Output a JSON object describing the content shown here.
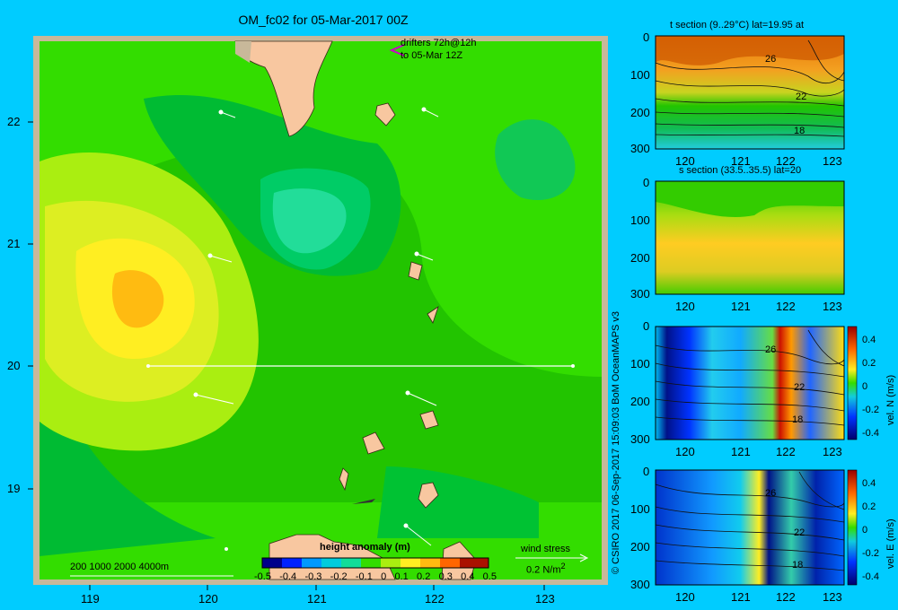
{
  "main_map": {
    "title": "OM_fc02 for 05-Mar-2017 00Z",
    "drifters_label_1": "drifters 72h@12h",
    "drifters_label_2": "to 05-Mar 12Z",
    "x_ticks": [
      "119",
      "120",
      "121",
      "122",
      "123"
    ],
    "y_ticks": [
      "22",
      "21",
      "20",
      "19"
    ],
    "depth_legend": "200  1000  2000  4000m",
    "colorbar_title": "height anomaly (m)",
    "colorbar_ticks": [
      "-0.5",
      "-0.4",
      "-0.3",
      "-0.2",
      "-0.1",
      "0",
      "0.1",
      "0.2",
      "0.3",
      "0.4",
      "0.5"
    ],
    "wind_label": "wind stress",
    "wind_scale": "0.2 N/m",
    "wind_scale_sup": "2",
    "section_line_lat": "20",
    "colors": {
      "land": "#f8c7a0",
      "frame": "#c8b89a",
      "bg": "#00ccff",
      "green": "#22cc00"
    }
  },
  "copyright": "© CSIRO 2017   06-Sep-2017 15:09:03 BoM OceanMAPS v3",
  "panels": [
    {
      "title": "t section (9..29°C) lat=19.95 at",
      "y_ticks": [
        "0",
        "100",
        "200",
        "300"
      ],
      "x_ticks": [
        "120",
        "121",
        "122",
        "123"
      ],
      "contour_labels": [
        "26",
        "22",
        "18"
      ]
    },
    {
      "title": "s section (33.5..35.5) lat=20",
      "y_ticks": [
        "0",
        "100",
        "200",
        "300"
      ],
      "x_ticks": [
        "120",
        "121",
        "122",
        "123"
      ],
      "contour_labels": []
    },
    {
      "title": "",
      "y_ticks": [
        "0",
        "100",
        "200",
        "300"
      ],
      "x_ticks": [
        "120",
        "121",
        "122",
        "123"
      ],
      "contour_labels": [
        "26",
        "22",
        "18"
      ],
      "cbar_label": "vel. N (m/s)",
      "cbar_ticks": [
        "0.4",
        "0.2",
        "0",
        "-0.2",
        "-0.4"
      ]
    },
    {
      "title": "",
      "y_ticks": [
        "0",
        "100",
        "200",
        "300"
      ],
      "x_ticks": [
        "120",
        "121",
        "122",
        "123"
      ],
      "contour_labels": [
        "26",
        "22",
        "18"
      ],
      "cbar_label": "vel. E (m/s)",
      "cbar_ticks": [
        "0.4",
        "0.2",
        "0",
        "-0.2",
        "-0.4"
      ]
    }
  ]
}
